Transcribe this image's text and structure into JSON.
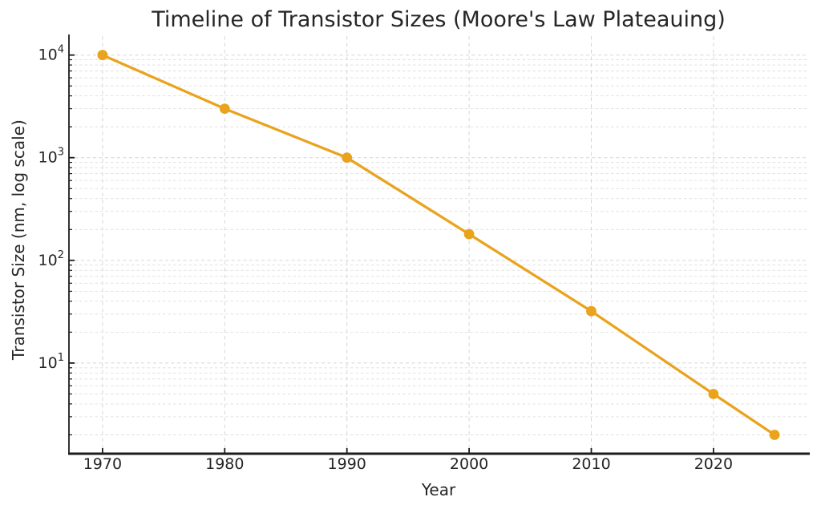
{
  "chart_data": {
    "type": "line",
    "title": "Timeline of Transistor Sizes (Moore's Law Plateauing)",
    "xlabel": "Year",
    "ylabel": "Transistor Size (nm, log scale)",
    "x": [
      1970,
      1980,
      1990,
      2000,
      2010,
      2020,
      2025
    ],
    "y": [
      10000,
      3000,
      1000,
      180,
      32,
      5,
      2
    ],
    "yscale": "log",
    "xlim": [
      1967.25,
      2027.75
    ],
    "ylim": [
      1.31,
      15300
    ],
    "xticks": [
      1970,
      1980,
      1990,
      2000,
      2010,
      2020
    ],
    "yticks": [
      10,
      100,
      1000,
      10000
    ],
    "ytick_labels": [
      "10¹",
      "10²",
      "10³",
      "10⁴"
    ],
    "grid": true,
    "grid_style": "dashed",
    "legend": "none",
    "colors": {
      "line": "#E9A31C",
      "marker": "#E9A31C",
      "grid_minor": "#DEDEDE",
      "grid_major": "#D5D5D5",
      "axis": "#1C1C1C",
      "text": "#262626",
      "background": "#FFFFFF"
    }
  }
}
